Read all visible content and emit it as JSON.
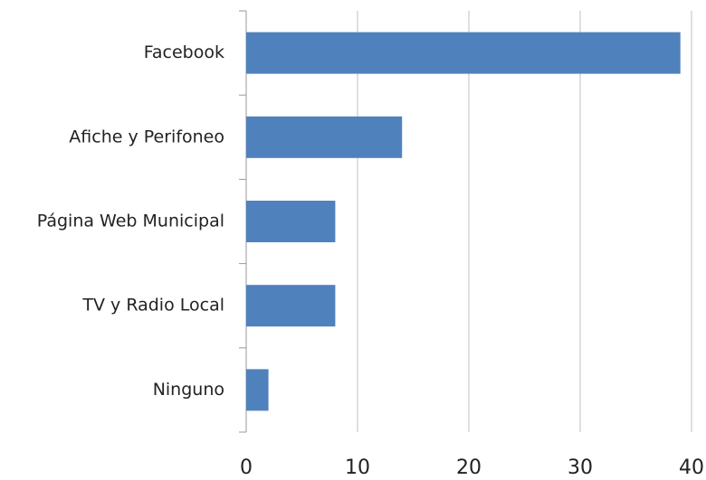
{
  "chart_data": {
    "type": "hbar",
    "categories": [
      "Facebook",
      "Afiche y Perifoneo",
      "Página Web Municipal",
      "TV y Radio Local",
      "Ninguno"
    ],
    "values": [
      39,
      14,
      8,
      8,
      2
    ],
    "color": "#4f81bd",
    "xlim": [
      0,
      40
    ],
    "xticks": [
      0,
      10,
      20,
      30,
      40
    ],
    "grid": true
  }
}
